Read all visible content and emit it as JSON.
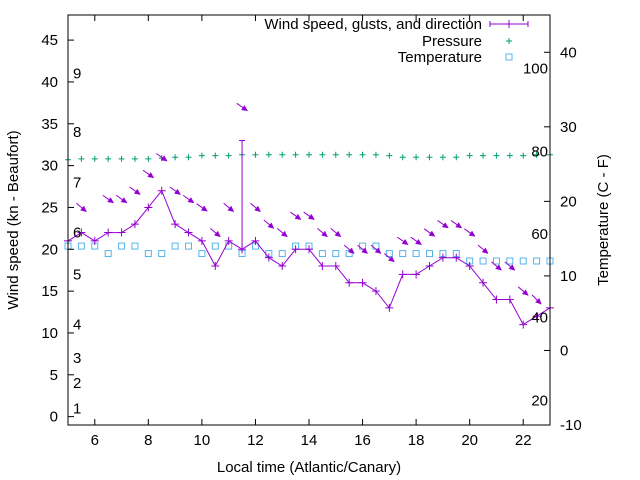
{
  "chart_data": {
    "type": "line",
    "xlabel": "Local time (Atlantic/Canary)",
    "ylabel": "Wind speed (kn - Beaufort)",
    "y2label": "Temperature (C - F)",
    "xlim": [
      5,
      23
    ],
    "ylim": [
      -1,
      48
    ],
    "y2lim": [
      -10,
      45
    ],
    "x_ticks": [
      6,
      8,
      10,
      12,
      14,
      16,
      18,
      20,
      22
    ],
    "y_ticks": [
      0,
      5,
      10,
      15,
      20,
      25,
      30,
      35,
      40,
      45
    ],
    "y2_ticks": [
      -10,
      0,
      10,
      20,
      30,
      40
    ],
    "beaufort_labels": [
      {
        "label": "1",
        "wind": 1
      },
      {
        "label": "2",
        "wind": 4
      },
      {
        "label": "3",
        "wind": 7
      },
      {
        "label": "4",
        "wind": 11
      },
      {
        "label": "5",
        "wind": 17
      },
      {
        "label": "6",
        "wind": 22
      },
      {
        "label": "7",
        "wind": 28
      },
      {
        "label": "8",
        "wind": 34
      },
      {
        "label": "9",
        "wind": 41
      }
    ],
    "fahrenheit_labels": [
      {
        "label": "20",
        "temp": -6.7
      },
      {
        "label": "40",
        "temp": 4.4
      },
      {
        "label": "60",
        "temp": 15.6
      },
      {
        "label": "80",
        "temp": 26.7
      },
      {
        "label": "100",
        "temp": 37.8
      }
    ],
    "legend": {
      "position": "top-right",
      "entries": [
        "Wind speed, gusts, and direction",
        "Pressure",
        "Temperature"
      ]
    },
    "series": [
      {
        "name": "Wind speed, gusts, and direction",
        "color": "#9400d3",
        "x": [
          5,
          5.5,
          6,
          6.5,
          7,
          7.5,
          8,
          8.5,
          9,
          9.5,
          10,
          10.5,
          11,
          11.5,
          12,
          12.5,
          13,
          13.5,
          14,
          14.5,
          15,
          15.5,
          16,
          16.5,
          17,
          17.5,
          18,
          18.5,
          19,
          19.5,
          20,
          20.5,
          21,
          21.5,
          22,
          22.5,
          23
        ],
        "values": [
          21,
          22,
          21,
          22,
          22,
          23,
          25,
          27,
          23,
          22,
          21,
          18,
          21,
          20,
          21,
          19,
          18,
          20,
          20,
          18,
          18,
          16,
          16,
          15,
          13,
          17,
          17,
          18,
          19,
          19,
          18,
          16,
          14,
          14,
          11,
          12,
          13
        ],
        "gust": {
          "x": 11.5,
          "value": 33
        }
      },
      {
        "name": "Pressure",
        "color": "#009e73",
        "x": [
          5,
          5.5,
          6,
          6.5,
          7,
          7.5,
          8,
          8.5,
          9,
          9.5,
          10,
          10.5,
          11,
          11.5,
          12,
          12.5,
          13,
          13.5,
          14,
          14.5,
          15,
          15.5,
          16,
          16.5,
          17,
          17.5,
          18,
          18.5,
          19,
          19.5,
          20,
          20.5,
          21,
          21.5,
          22,
          22.5,
          23
        ],
        "values": [
          30.7,
          30.8,
          30.8,
          30.8,
          30.8,
          30.8,
          30.8,
          30.9,
          31.0,
          31.0,
          31.2,
          31.2,
          31.2,
          31.3,
          31.3,
          31.3,
          31.3,
          31.3,
          31.3,
          31.3,
          31.3,
          31.3,
          31.3,
          31.3,
          31.2,
          31.0,
          31.0,
          31.0,
          31.0,
          31.0,
          31.2,
          31.2,
          31.2,
          31.2,
          31.2,
          31.3,
          31.3
        ]
      },
      {
        "name": "Temperature",
        "color": "#56b4e9",
        "x": [
          5,
          5.5,
          6,
          6.5,
          7,
          7.5,
          8,
          8.5,
          9,
          9.5,
          10,
          10.5,
          11,
          11.5,
          12,
          12.5,
          13,
          13.5,
          14,
          14.5,
          15,
          15.5,
          16,
          16.5,
          17,
          17.5,
          18,
          18.5,
          19,
          19.5,
          20,
          20.5,
          21,
          21.5,
          22,
          22.5,
          23
        ],
        "values": [
          14,
          14,
          14,
          13,
          14,
          14,
          13,
          13,
          14,
          14,
          13,
          14,
          14,
          13,
          14,
          13,
          13,
          14,
          14,
          13,
          13,
          13,
          14,
          14,
          13,
          13,
          13,
          13,
          13,
          13,
          12,
          12,
          12,
          12,
          12,
          12,
          12
        ]
      }
    ],
    "direction_arrows": {
      "color": "#9400d3",
      "points": [
        {
          "x": 5.5,
          "wind": 25,
          "angle": 40
        },
        {
          "x": 6.5,
          "wind": 26,
          "angle": 35
        },
        {
          "x": 7,
          "wind": 26,
          "angle": 35
        },
        {
          "x": 7.5,
          "wind": 27,
          "angle": 35
        },
        {
          "x": 8,
          "wind": 29,
          "angle": 35
        },
        {
          "x": 8.5,
          "wind": 31,
          "angle": 35
        },
        {
          "x": 9,
          "wind": 27,
          "angle": 35
        },
        {
          "x": 9.5,
          "wind": 26,
          "angle": 35
        },
        {
          "x": 10,
          "wind": 25,
          "angle": 35
        },
        {
          "x": 10.5,
          "wind": 22,
          "angle": 40
        },
        {
          "x": 11,
          "wind": 25,
          "angle": 40
        },
        {
          "x": 11.5,
          "wind": 37,
          "angle": 35
        },
        {
          "x": 12,
          "wind": 25,
          "angle": 40
        },
        {
          "x": 12.5,
          "wind": 23,
          "angle": 40
        },
        {
          "x": 13,
          "wind": 22,
          "angle": 40
        },
        {
          "x": 13.5,
          "wind": 24,
          "angle": 35
        },
        {
          "x": 14,
          "wind": 24,
          "angle": 35
        },
        {
          "x": 14.5,
          "wind": 22,
          "angle": 40
        },
        {
          "x": 15,
          "wind": 22,
          "angle": 40
        },
        {
          "x": 15.5,
          "wind": 20,
          "angle": 40
        },
        {
          "x": 16,
          "wind": 20,
          "angle": 40
        },
        {
          "x": 16.5,
          "wind": 20,
          "angle": 40
        },
        {
          "x": 17,
          "wind": 19,
          "angle": 40
        },
        {
          "x": 17.5,
          "wind": 21,
          "angle": 35
        },
        {
          "x": 18,
          "wind": 21,
          "angle": 35
        },
        {
          "x": 18.5,
          "wind": 22,
          "angle": 35
        },
        {
          "x": 19,
          "wind": 23,
          "angle": 35
        },
        {
          "x": 19.5,
          "wind": 23,
          "angle": 35
        },
        {
          "x": 20,
          "wind": 22,
          "angle": 35
        },
        {
          "x": 20.5,
          "wind": 20,
          "angle": 40
        },
        {
          "x": 21,
          "wind": 18,
          "angle": 40
        },
        {
          "x": 21.5,
          "wind": 18,
          "angle": 40
        },
        {
          "x": 22,
          "wind": 15,
          "angle": 40
        },
        {
          "x": 22.5,
          "wind": 14,
          "angle": 45
        }
      ]
    }
  }
}
